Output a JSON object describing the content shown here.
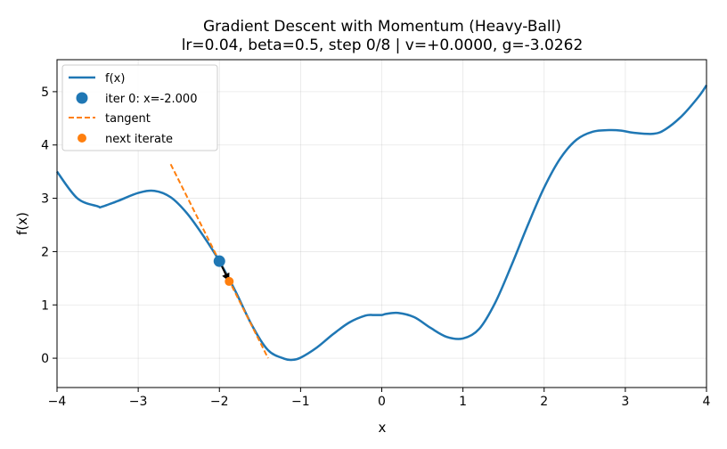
{
  "chart_data": {
    "type": "line",
    "title": "Gradient Descent with Momentum (Heavy-Ball)",
    "subtitle": "lr=0.04, beta=0.5, step 0/8 | v=+0.0000, g=-3.0262",
    "xlabel": "x",
    "ylabel": "f(x)",
    "xlim": [
      -4,
      4
    ],
    "ylim": [
      -0.55,
      5.6
    ],
    "xticks": [
      "−4",
      "−3",
      "−2",
      "−1",
      "0",
      "1",
      "2",
      "3",
      "4"
    ],
    "xtick_values": [
      -4,
      -3,
      -2,
      -1,
      0,
      1,
      2,
      3,
      4
    ],
    "yticks": [
      "0",
      "1",
      "2",
      "3",
      "4",
      "5"
    ],
    "ytick_values": [
      0,
      1,
      2,
      3,
      4,
      5
    ],
    "grid": true,
    "legend_position": "top-left",
    "series": [
      {
        "name": "f(x)",
        "kind": "line",
        "color": "#1f77b4",
        "x": [
          -4.0,
          -3.75,
          -3.5,
          -3.45,
          -3.25,
          -3.0,
          -2.8,
          -2.6,
          -2.4,
          -2.2,
          -2.0,
          -1.8,
          -1.6,
          -1.4,
          -1.2,
          -1.1,
          -1.0,
          -0.8,
          -0.6,
          -0.4,
          -0.2,
          -0.1,
          0.0,
          0.05,
          0.2,
          0.4,
          0.6,
          0.8,
          1.0,
          1.2,
          1.4,
          1.6,
          1.8,
          2.0,
          2.2,
          2.4,
          2.6,
          2.8,
          2.95,
          3.1,
          3.35,
          3.5,
          3.7,
          3.9,
          4.0
        ],
        "y": [
          3.5,
          3.0,
          2.85,
          2.84,
          2.95,
          3.1,
          3.14,
          3.02,
          2.72,
          2.3,
          1.82,
          1.25,
          0.62,
          0.15,
          -0.01,
          -0.03,
          0.01,
          0.2,
          0.45,
          0.67,
          0.8,
          0.81,
          0.81,
          0.83,
          0.85,
          0.77,
          0.57,
          0.4,
          0.37,
          0.55,
          1.05,
          1.75,
          2.5,
          3.2,
          3.75,
          4.1,
          4.25,
          4.28,
          4.27,
          4.23,
          4.21,
          4.3,
          4.55,
          4.9,
          5.12
        ]
      },
      {
        "name": "iter 0: x=-2.000",
        "kind": "point",
        "color": "#1f77b4",
        "x": [
          -2.0
        ],
        "y": [
          1.82
        ]
      },
      {
        "name": "tangent",
        "kind": "dashed-line",
        "color": "#ff7f0e",
        "x": [
          -2.6,
          -1.4
        ],
        "y": [
          3.64,
          0.0
        ]
      },
      {
        "name": "next iterate",
        "kind": "point",
        "color": "#ff7f0e",
        "x": [
          -1.879
        ],
        "y": [
          1.44
        ]
      }
    ],
    "annotations": [
      {
        "kind": "arrow",
        "color": "#000000",
        "from": [
          -2.0,
          1.82
        ],
        "to": [
          -1.879,
          1.44
        ]
      }
    ]
  }
}
